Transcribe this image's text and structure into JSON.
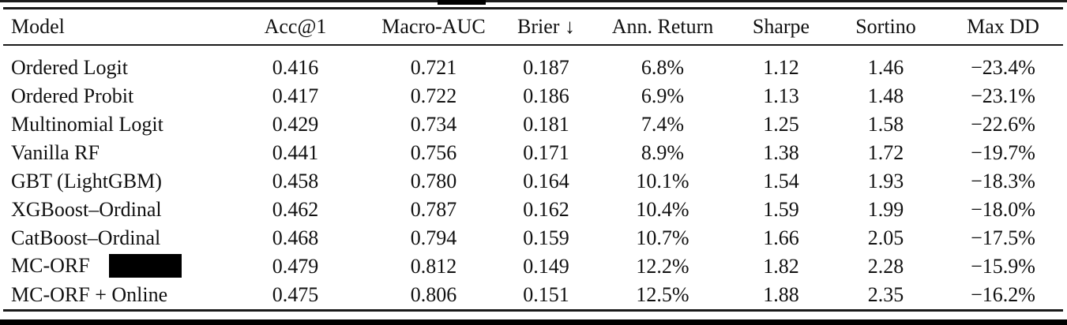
{
  "table": {
    "columns": [
      "Model",
      "Acc@1",
      "Macro-AUC",
      "Brier ↓",
      "Ann. Return",
      "Sharpe",
      "Sortino",
      "Max DD"
    ],
    "rows": [
      {
        "model": "Ordered Logit",
        "acc1": "0.416",
        "macro_auc": "0.721",
        "brier": "0.187",
        "ann_return": "6.8%",
        "sharpe": "1.12",
        "sortino": "1.46",
        "max_dd": "−23.4%"
      },
      {
        "model": "Ordered Probit",
        "acc1": "0.417",
        "macro_auc": "0.722",
        "brier": "0.186",
        "ann_return": "6.9%",
        "sharpe": "1.13",
        "sortino": "1.48",
        "max_dd": "−23.1%"
      },
      {
        "model": "Multinomial Logit",
        "acc1": "0.429",
        "macro_auc": "0.734",
        "brier": "0.181",
        "ann_return": "7.4%",
        "sharpe": "1.25",
        "sortino": "1.58",
        "max_dd": "−22.6%"
      },
      {
        "model": "Vanilla RF",
        "acc1": "0.441",
        "macro_auc": "0.756",
        "brier": "0.171",
        "ann_return": "8.9%",
        "sharpe": "1.38",
        "sortino": "1.72",
        "max_dd": "−19.7%"
      },
      {
        "model": "GBT (LightGBM)",
        "acc1": "0.458",
        "macro_auc": "0.780",
        "brier": "0.164",
        "ann_return": "10.1%",
        "sharpe": "1.54",
        "sortino": "1.93",
        "max_dd": "−18.3%"
      },
      {
        "model": "XGBoost–Ordinal",
        "acc1": "0.462",
        "macro_auc": "0.787",
        "brier": "0.162",
        "ann_return": "10.4%",
        "sharpe": "1.59",
        "sortino": "1.99",
        "max_dd": "−18.0%"
      },
      {
        "model": "CatBoost–Ordinal",
        "acc1": "0.468",
        "macro_auc": "0.794",
        "brier": "0.159",
        "ann_return": "10.7%",
        "sharpe": "1.66",
        "sortino": "2.05",
        "max_dd": "−17.5%"
      },
      {
        "model": "MC-ORF",
        "redacted": true,
        "acc1": "0.479",
        "macro_auc": "0.812",
        "brier": "0.149",
        "ann_return": "12.2%",
        "sharpe": "1.82",
        "sortino": "2.28",
        "max_dd": "−15.9%"
      },
      {
        "model": "MC-ORF + Online",
        "acc1": "0.475",
        "macro_auc": "0.806",
        "brier": "0.151",
        "ann_return": "12.5%",
        "sharpe": "1.88",
        "sortino": "2.35",
        "max_dd": "−16.2%"
      }
    ]
  }
}
